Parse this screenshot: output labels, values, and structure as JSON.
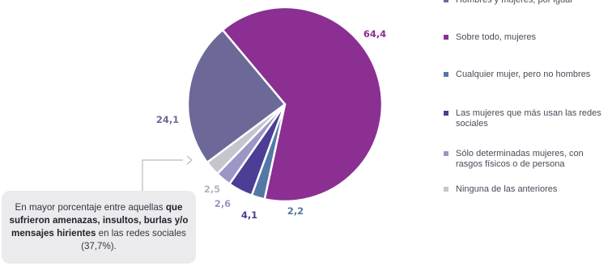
{
  "chart_data": {
    "type": "pie",
    "slices": [
      {
        "label": "Sobre todo, mujeres",
        "value": 64.4,
        "display": "64,4",
        "color": "#8b2f92"
      },
      {
        "label": "Cualquier mujer, pero no hombres",
        "value": 2.2,
        "display": "2,2",
        "color": "#5478a6"
      },
      {
        "label": "Las mujeres que más usan las redes sociales",
        "value": 4.1,
        "display": "4,1",
        "color": "#4b3e94"
      },
      {
        "label": "Sólo determinadas mujeres, con rasgos físicos o de persona",
        "value": 2.6,
        "display": "2,6",
        "color": "#9a96c6"
      },
      {
        "label": "Ninguna de las anteriores",
        "value": 2.5,
        "display": "2,5",
        "color": "#c5c5cd"
      },
      {
        "label": "",
        "value": 24.1,
        "display": "24,1",
        "color": "#6c6998"
      }
    ],
    "legend": [
      {
        "label": "Hombres y mujeres, por igual",
        "color": "#6c6998"
      },
      {
        "label": "Sobre todo, mujeres",
        "color": "#8b2f92"
      },
      {
        "label": "Cualquier mujer, pero no hombres",
        "color": "#5478a6"
      },
      {
        "label": "Las mujeres que más usan las redes sociales",
        "color": "#4b3e94"
      },
      {
        "label": "Sólo determinadas mujeres, con rasgos físicos o de persona",
        "color": "#9a96c6"
      },
      {
        "label": "Ninguna de las anteriores",
        "color": "#c5c5cd"
      }
    ],
    "legend_position": "right"
  },
  "callout": {
    "text_before": "En mayor porcentaje entre aquellas",
    "text_bold": "que sufrieron amenazas, insultos, burlas y/o mensajes hirientes",
    "text_after": "en las redes sociales (37,7%)."
  }
}
